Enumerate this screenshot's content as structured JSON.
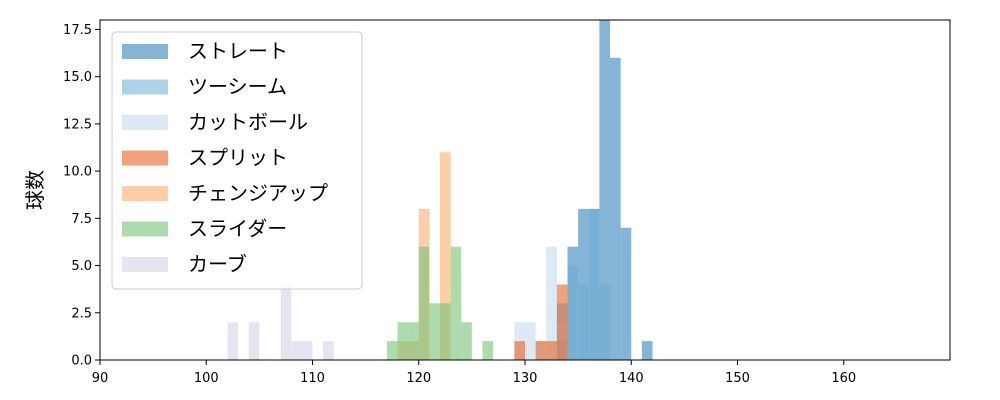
{
  "chart_data": {
    "type": "bar",
    "xlabel": "",
    "ylabel": "球数",
    "xlim": [
      90,
      170
    ],
    "ylim": [
      0,
      18
    ],
    "x_ticks": [
      90,
      100,
      110,
      120,
      130,
      140,
      150,
      160
    ],
    "y_ticks": [
      0.0,
      2.5,
      5.0,
      7.5,
      10.0,
      12.5,
      15.0,
      17.5
    ],
    "y_tick_labels": [
      "0.0",
      "2.5",
      "5.0",
      "7.5",
      "10.0",
      "12.5",
      "15.0",
      "17.5"
    ],
    "bin_width": 1,
    "legend_position": "top-left",
    "grid": false,
    "series": [
      {
        "name": "ストレート",
        "color": "#1f77b4",
        "opacity": 0.55,
        "bins": [
          [
            133,
            1
          ],
          [
            134,
            6
          ],
          [
            135,
            8
          ],
          [
            136,
            8
          ],
          [
            137,
            18
          ],
          [
            138,
            16
          ],
          [
            139,
            7
          ],
          [
            141,
            1
          ]
        ]
      },
      {
        "name": "ツーシーム",
        "color": "#6baed6",
        "opacity": 0.55,
        "bins": [
          [
            133,
            3
          ],
          [
            134,
            5
          ],
          [
            135,
            4
          ],
          [
            136,
            8
          ],
          [
            137,
            4
          ]
        ]
      },
      {
        "name": "カットボール",
        "color": "#c6dbef",
        "opacity": 0.6,
        "bins": [
          [
            129,
            2
          ],
          [
            130,
            2
          ],
          [
            131,
            1
          ],
          [
            132,
            6
          ],
          [
            133,
            2
          ]
        ]
      },
      {
        "name": "スプリット",
        "color": "#e6550d",
        "opacity": 0.55,
        "bins": [
          [
            129,
            1
          ],
          [
            131,
            1
          ],
          [
            132,
            1
          ],
          [
            133,
            4
          ]
        ]
      },
      {
        "name": "チェンジアップ",
        "color": "#fdae6b",
        "opacity": 0.6,
        "bins": [
          [
            118,
            1
          ],
          [
            119,
            1
          ],
          [
            120,
            8
          ],
          [
            122,
            11
          ]
        ]
      },
      {
        "name": "スライダー",
        "color": "#74c476",
        "opacity": 0.6,
        "bins": [
          [
            117,
            1
          ],
          [
            118,
            2
          ],
          [
            119,
            2
          ],
          [
            120,
            6
          ],
          [
            121,
            3
          ],
          [
            122,
            3
          ],
          [
            123,
            6
          ],
          [
            124,
            2
          ],
          [
            126,
            1
          ]
        ]
      },
      {
        "name": "カーブ",
        "color": "#dadaeb",
        "opacity": 0.7,
        "bins": [
          [
            102,
            2
          ],
          [
            104,
            2
          ],
          [
            107,
            4
          ],
          [
            108,
            1
          ],
          [
            109,
            1
          ],
          [
            111,
            1
          ]
        ]
      }
    ]
  }
}
